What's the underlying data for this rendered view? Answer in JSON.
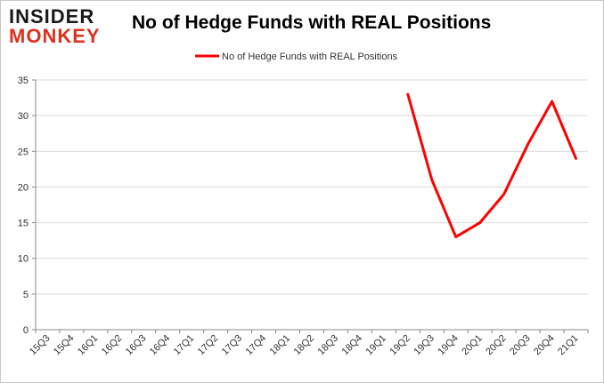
{
  "logo": {
    "line1": "INSIDER",
    "line2": "MONKEY"
  },
  "chart_data": {
    "type": "line",
    "title": "No of Hedge Funds with REAL Positions",
    "xlabel": "",
    "ylabel": "",
    "categories": [
      "15Q3",
      "15Q4",
      "16Q1",
      "16Q2",
      "16Q3",
      "16Q4",
      "17Q1",
      "17Q2",
      "17Q3",
      "17Q4",
      "18Q1",
      "18Q2",
      "18Q3",
      "18Q4",
      "19Q1",
      "19Q2",
      "19Q3",
      "19Q4",
      "20Q1",
      "20Q2",
      "20Q3",
      "20Q4",
      "21Q1"
    ],
    "series": [
      {
        "name": "No of Hedge Funds with REAL Positions",
        "color": "#ff0000",
        "values": [
          null,
          null,
          null,
          null,
          null,
          null,
          null,
          null,
          null,
          null,
          null,
          null,
          null,
          null,
          null,
          33,
          21,
          13,
          15,
          19,
          26,
          32,
          24
        ]
      }
    ],
    "ylim": [
      0,
      35
    ],
    "yticks": [
      0,
      5,
      10,
      15,
      20,
      25,
      30,
      35
    ],
    "grid": true,
    "legend_position": "top-center"
  }
}
